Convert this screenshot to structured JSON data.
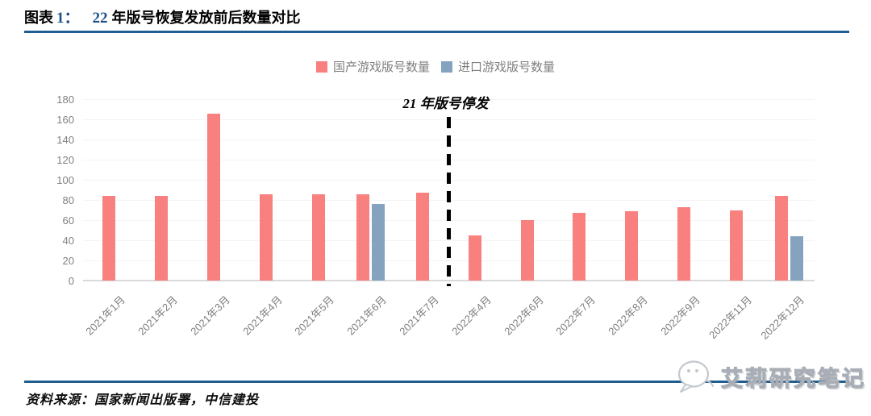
{
  "figure_header": {
    "label": "图表",
    "number": "1：",
    "year": "22",
    "title": "年版号恢复发放前后数量对比"
  },
  "legend": {
    "items": [
      {
        "label": "国产游戏版号数量",
        "color": "#F8807E"
      },
      {
        "label": "进口游戏版号数量",
        "color": "#85A3BE"
      }
    ]
  },
  "chart_data": {
    "type": "bar",
    "title": "22 年版号恢复发放前后数量对比",
    "categories": [
      "2021年1月",
      "2021年2月",
      "2021年3月",
      "2021年4月",
      "2021年5月",
      "2021年6月",
      "2021年7月",
      "2022年4月",
      "2022年6月",
      "2022年7月",
      "2022年8月",
      "2022年9月",
      "2022年11月",
      "2022年12月"
    ],
    "series": [
      {
        "name": "国产游戏版号数量",
        "color": "#F8807E",
        "values": [
          84,
          84,
          166,
          86,
          86,
          86,
          87,
          45,
          60,
          67,
          69,
          73,
          70,
          84
        ]
      },
      {
        "name": "进口游戏版号数量",
        "color": "#85A3BE",
        "values": [
          null,
          null,
          null,
          null,
          null,
          76,
          null,
          null,
          null,
          null,
          null,
          null,
          null,
          44
        ]
      }
    ],
    "ylim": [
      0,
      180
    ],
    "ytick_step": 20,
    "grid": "horizontal-faint",
    "legend_position": "top-center",
    "annotation": {
      "text": "21 年版号停发",
      "between": [
        "2021年7月",
        "2022年4月"
      ],
      "marker": "black-dashed-vertical-line"
    }
  },
  "footer": {
    "source": "资料来源：国家新闻出版署，中信建投"
  },
  "watermark": {
    "text": "艾莉研究笔记",
    "icon": "wechat-chat-bubble-icon"
  },
  "colors": {
    "accent_rule": "#1F5C8F",
    "title_number": "#1C5288",
    "axis_text": "#808080",
    "domestic_bar": "#F8807E",
    "imported_bar": "#85A3BE",
    "baseline": "#d9d9d9"
  }
}
